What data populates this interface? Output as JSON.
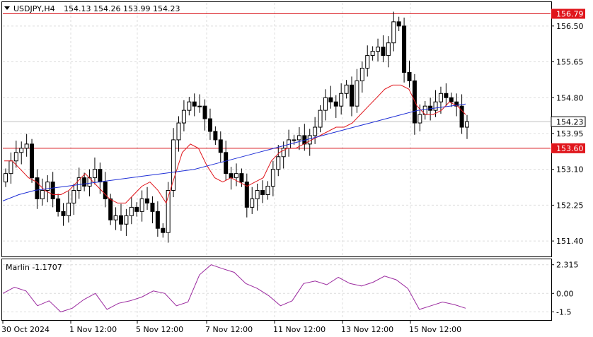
{
  "header": {
    "symbol": "USDJPY,H4",
    "ohlc": "154.13 154.26 153.99 154.23"
  },
  "oscillator": {
    "label": "Marlin -1.1707",
    "ticks": [
      "2.315",
      "0.00",
      "-1.5"
    ]
  },
  "colors": {
    "up_candle": "#ffffff",
    "down_candle": "#000000",
    "ma_fast": "#e0161c",
    "ma_slow": "#1f2fd6",
    "oscillator": "#9b2a9f",
    "level_line": "#d9161c",
    "level_label_bg": "#e0161c",
    "grid": "#dcdcdc"
  },
  "chart_data": {
    "type": "candlestick",
    "symbol": "USDJPY",
    "timeframe": "H4",
    "ylim": [
      151.05,
      157.05
    ],
    "y_ticks": [
      "156.50",
      "155.65",
      "154.80",
      "153.95",
      "153.10",
      "152.25",
      "151.40"
    ],
    "x_ticks": [
      "30 Oct 2024",
      "1 Nov 12:00",
      "5 Nov 12:00",
      "7 Nov 12:00",
      "11 Nov 12:00",
      "13 Nov 12:00",
      "15 Nov 12:00"
    ],
    "current_price": "154.23",
    "levels": [
      {
        "value": 156.79,
        "label": "156.79"
      },
      {
        "value": 153.6,
        "label": "153.60"
      }
    ],
    "candles_close": [
      153.0,
      153.3,
      153.5,
      153.6,
      153.7,
      152.9,
      152.4,
      152.6,
      152.8,
      152.4,
      152.1,
      152.0,
      152.3,
      152.6,
      152.9,
      152.7,
      152.9,
      153.1,
      152.8,
      152.4,
      151.9,
      152.0,
      151.8,
      152.0,
      152.2,
      152.1,
      152.4,
      152.3,
      152.1,
      151.7,
      151.6,
      152.6,
      153.8,
      154.2,
      154.5,
      154.7,
      154.6,
      154.6,
      154.3,
      154.0,
      153.8,
      153.5,
      153.0,
      152.9,
      153.0,
      152.8,
      152.2,
      152.4,
      152.6,
      152.5,
      152.7,
      153.1,
      153.4,
      153.6,
      153.8,
      153.8,
      153.9,
      153.7,
      153.9,
      154.1,
      154.5,
      154.8,
      154.7,
      154.6,
      154.9,
      155.1,
      154.6,
      155.2,
      155.5,
      155.8,
      155.9,
      156.0,
      155.8,
      156.1,
      156.6,
      156.5,
      155.4,
      155.2,
      154.2,
      154.4,
      154.6,
      154.5,
      154.7,
      154.9,
      154.8,
      154.7,
      154.6,
      154.1,
      154.23
    ],
    "ma_fast": [
      153.3,
      153.3,
      153.1,
      152.9,
      152.8,
      152.6,
      152.5,
      152.5,
      152.6,
      152.8,
      153.0,
      152.8,
      152.6,
      152.4,
      152.3,
      152.3,
      152.5,
      152.7,
      152.8,
      152.6,
      152.3,
      152.9,
      153.5,
      153.7,
      153.6,
      153.2,
      152.9,
      152.8,
      152.9,
      152.8,
      152.7,
      152.8,
      152.9,
      153.3,
      153.5,
      153.6,
      153.6,
      153.7,
      153.8,
      153.9,
      154.0,
      154.1,
      154.1,
      154.2,
      154.4,
      154.6,
      154.8,
      155.0,
      155.1,
      155.1,
      155.0,
      154.6,
      154.4,
      154.4,
      154.5,
      154.7,
      154.6,
      154.4
    ],
    "ma_slow": [
      152.35,
      152.5,
      152.6,
      152.65,
      152.7,
      152.75,
      152.8,
      152.85,
      152.9,
      152.95,
      153.0,
      153.05,
      153.1,
      153.2,
      153.3,
      153.4,
      153.5,
      153.6,
      153.7,
      153.8,
      153.9,
      154.0,
      154.1,
      154.2,
      154.3,
      154.4,
      154.5,
      154.55,
      154.6,
      154.65
    ],
    "oscillator_values": [
      0.0,
      0.5,
      0.2,
      -1.0,
      -0.6,
      -1.5,
      -1.2,
      -0.5,
      0.0,
      -1.3,
      -0.8,
      -0.6,
      -0.3,
      0.2,
      0.0,
      -1.0,
      -0.7,
      1.5,
      2.315,
      2.0,
      1.7,
      0.8,
      0.4,
      -0.2,
      -1.0,
      -0.6,
      0.8,
      1.0,
      0.7,
      1.3,
      0.8,
      0.6,
      0.9,
      1.4,
      1.1,
      0.4,
      -1.3,
      -1.0,
      -0.7,
      -0.9,
      -1.2
    ]
  }
}
